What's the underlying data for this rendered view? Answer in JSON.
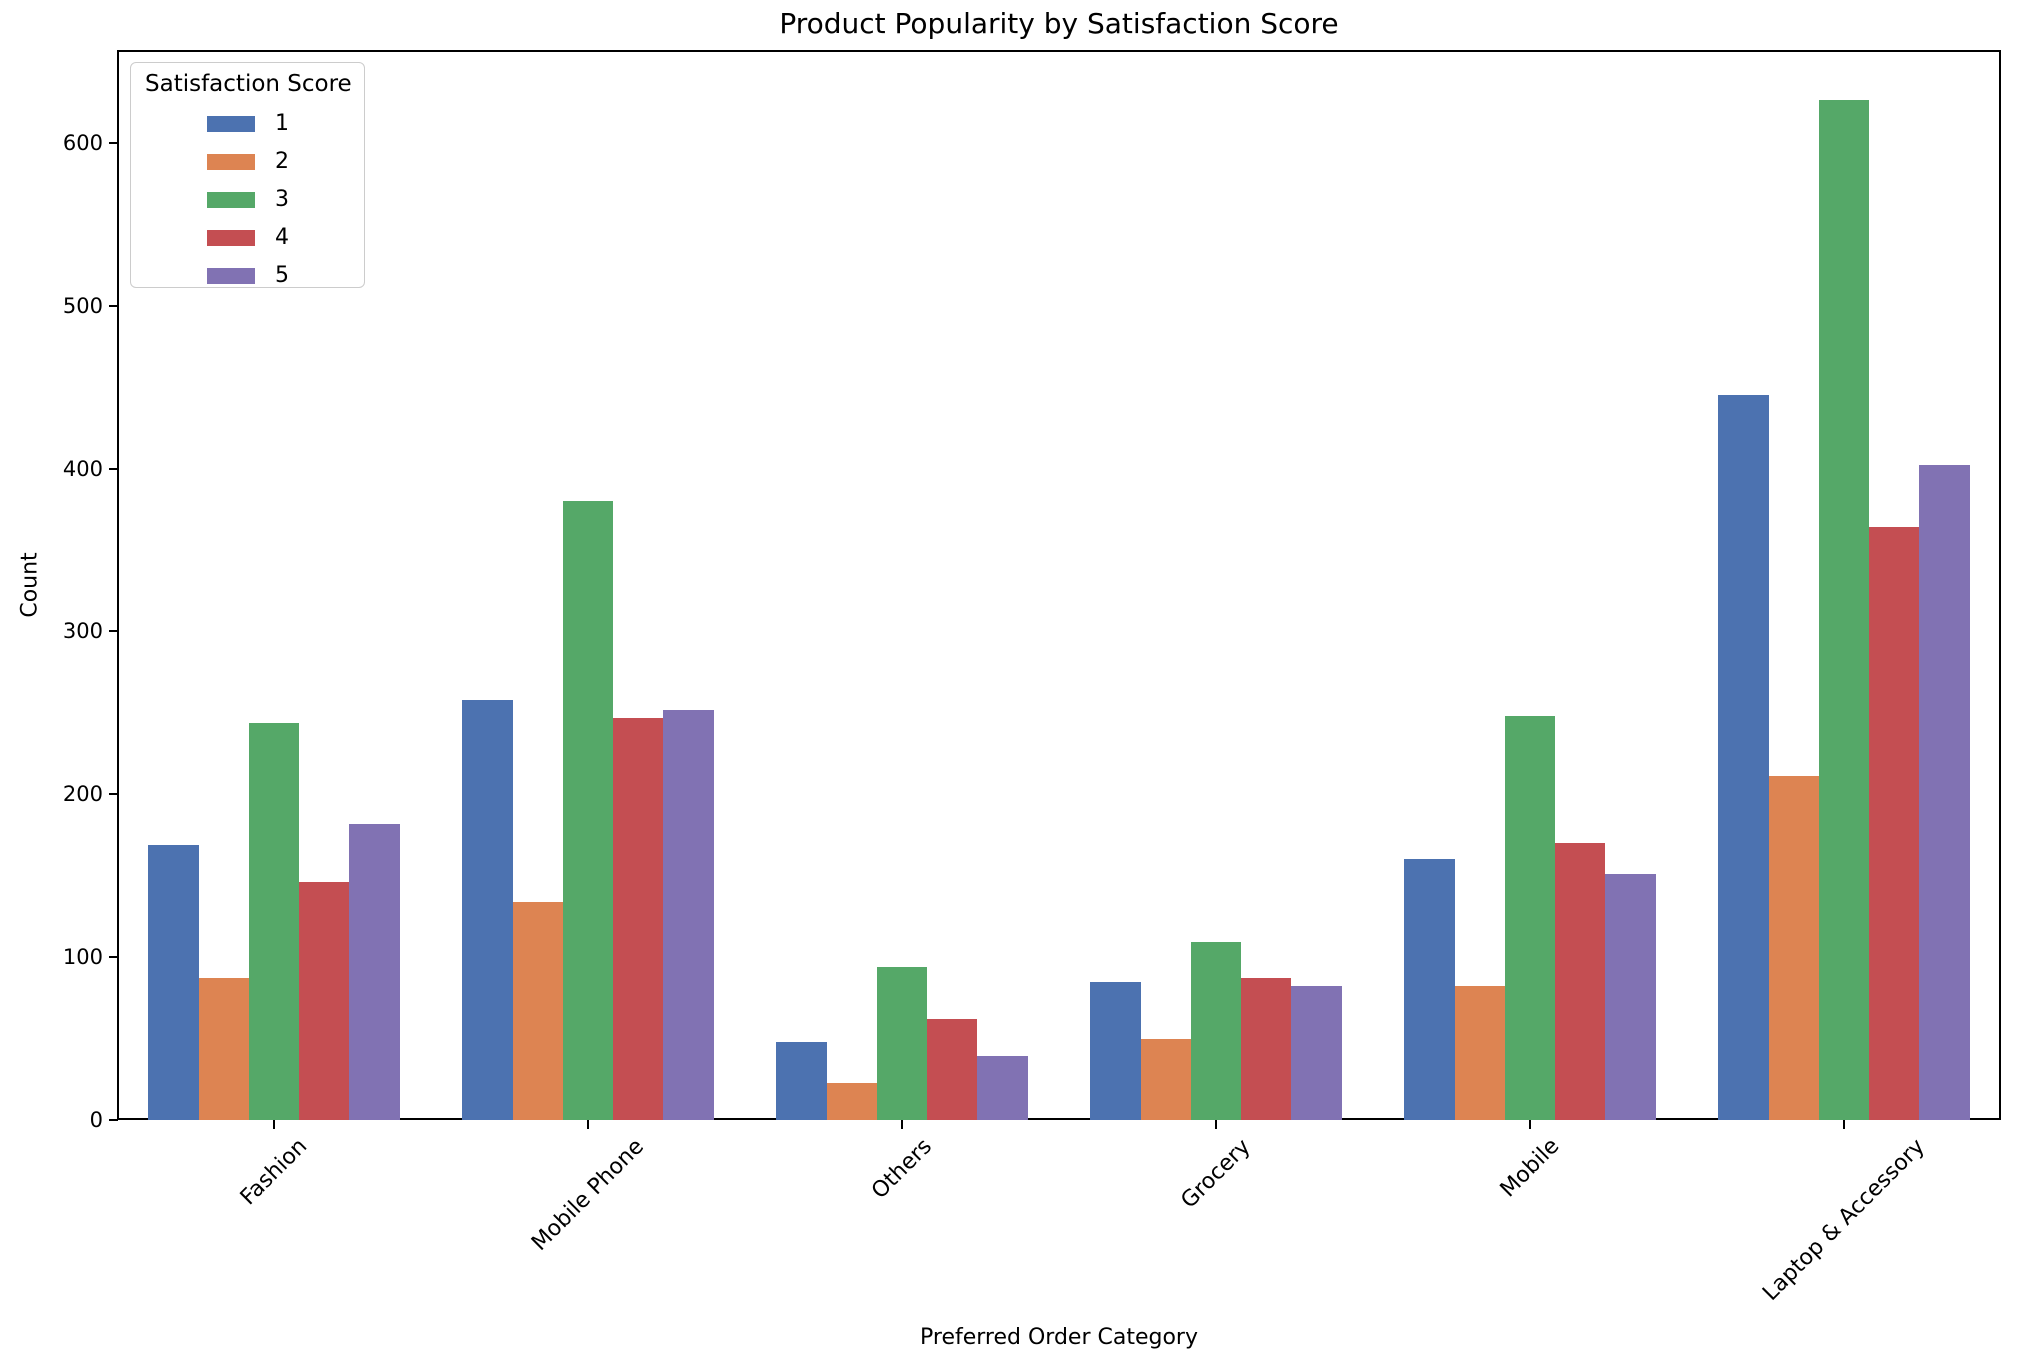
{
  "chart_data": {
    "type": "bar",
    "title": "Product Popularity by Satisfaction Score",
    "xlabel": "Preferred Order Category",
    "ylabel": "Count",
    "categories": [
      "Fashion",
      "Mobile Phone",
      "Others",
      "Grocery",
      "Mobile",
      "Laptop & Accessory"
    ],
    "series": [
      {
        "name": "1",
        "color": "#4C72B0",
        "values": [
          169,
          258,
          48,
          85,
          160,
          445
        ]
      },
      {
        "name": "2",
        "color": "#DD8452",
        "values": [
          87,
          134,
          23,
          50,
          82,
          211
        ]
      },
      {
        "name": "3",
        "color": "#55A868",
        "values": [
          244,
          380,
          94,
          109,
          248,
          626
        ]
      },
      {
        "name": "4",
        "color": "#C44E52",
        "values": [
          146,
          247,
          62,
          87,
          170,
          364
        ]
      },
      {
        "name": "5",
        "color": "#8172B3",
        "values": [
          182,
          252,
          39,
          82,
          151,
          402
        ]
      }
    ],
    "yticks": [
      0,
      100,
      200,
      300,
      400,
      500,
      600
    ],
    "ylim": [
      0,
      657
    ],
    "grid": false,
    "legend": {
      "title": "Satisfaction Score",
      "position": "upper left",
      "entries": [
        "1",
        "2",
        "3",
        "4",
        "5"
      ]
    }
  }
}
